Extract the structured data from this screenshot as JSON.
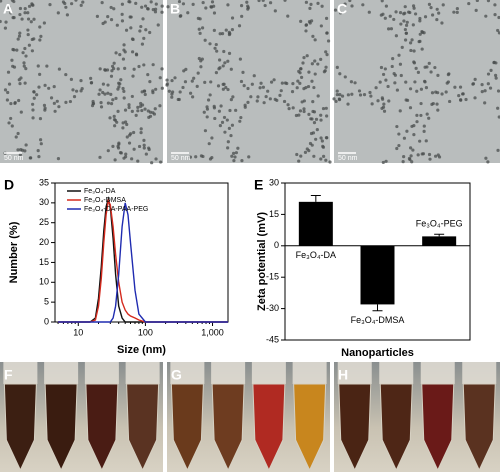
{
  "panel_labels": [
    "A",
    "B",
    "C",
    "D",
    "E",
    "F",
    "G",
    "H"
  ],
  "scale_bars": [
    "50 nm",
    "50 nm",
    "50 nm"
  ],
  "chart_data": [
    {
      "type": "line",
      "y_label": "Number (%)",
      "x_label": "Size (nm)",
      "log_x": true,
      "x": [
        5,
        10,
        15,
        18,
        20,
        22,
        24,
        26,
        28,
        30,
        33,
        36,
        40,
        45,
        50,
        55,
        60,
        70,
        80,
        100,
        150,
        1000,
        1700
      ],
      "series": [
        {
          "name": "Fe₃O₄-DA",
          "color": "#111111",
          "values": [
            0,
            0,
            0,
            1,
            6,
            14,
            23,
            29,
            31,
            29,
            21,
            12,
            4,
            1,
            0,
            0,
            0,
            0,
            0,
            0,
            0,
            0,
            0
          ]
        },
        {
          "name": "Fe₃O₄-DMSA",
          "color": "#d42a1e",
          "values": [
            0,
            0,
            0,
            0.5,
            4,
            11,
            20,
            27,
            30.5,
            29.5,
            24,
            17,
            10,
            5,
            3,
            2,
            1.5,
            1,
            0.5,
            0,
            0,
            0,
            0
          ]
        },
        {
          "name": "Fe₃O₄-DA-PAA-PEG",
          "color": "#1f2bb0",
          "values": [
            0,
            0,
            0,
            0,
            0,
            0,
            0,
            0,
            0,
            0,
            1,
            4,
            12,
            24,
            30,
            27,
            20,
            8,
            2,
            0,
            0,
            0,
            0
          ]
        }
      ],
      "xlim": [
        4.5,
        1700
      ],
      "xticks": [
        10,
        100,
        {
          "value": 1000,
          "label": "1,000"
        }
      ],
      "ylim": [
        0,
        35
      ],
      "yticks": [
        0,
        5,
        10,
        15,
        20,
        25,
        30,
        35
      ],
      "legend": "top-left"
    },
    {
      "type": "bar",
      "y_label": "Zeta potential (mV)",
      "x_label": "Nanoparticles",
      "categories": [
        "Fe₃O₄-DA",
        "Fe₃O₄-DMSA",
        "Fe₃O₄-PEG"
      ],
      "values": [
        21,
        -28,
        4.5
      ],
      "errors": [
        3,
        3,
        1
      ],
      "color": "#000000",
      "ylim": [
        -45,
        30
      ],
      "yticks": [
        -45,
        -30,
        -15,
        0,
        15,
        30
      ]
    }
  ]
}
